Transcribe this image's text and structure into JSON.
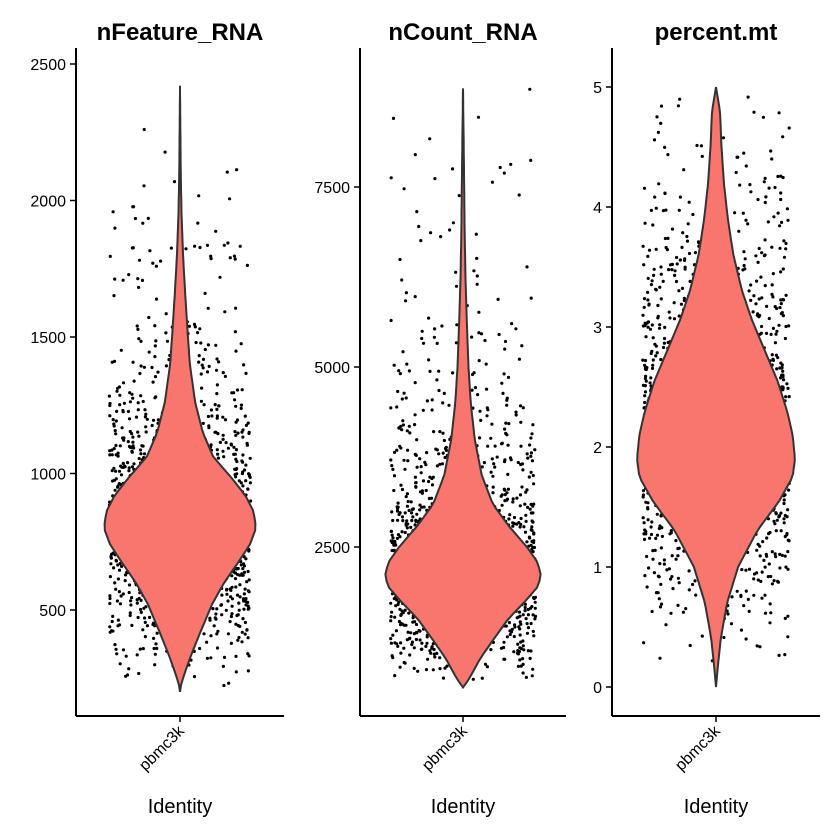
{
  "chart_data": [
    {
      "type": "violin",
      "title": "nFeature_RNA",
      "xlabel": "Identity",
      "ylabel": "",
      "categories": [
        "pbmc3k"
      ],
      "y_ticks": [
        500,
        1000,
        1500,
        2000,
        2500
      ],
      "y_tick_labels": [
        "500",
        "1000",
        "1500",
        "2000",
        "2500"
      ],
      "ylim": [
        200,
        2420
      ],
      "fill_color": "#F8766D",
      "outline_color": "#333333",
      "point_color": "#000000",
      "summary": {
        "min": 212,
        "mode": 820,
        "max": 2410
      },
      "density_profile": [
        [
          212,
          0.0
        ],
        [
          260,
          0.05
        ],
        [
          330,
          0.14
        ],
        [
          420,
          0.27
        ],
        [
          520,
          0.42
        ],
        [
          600,
          0.58
        ],
        [
          680,
          0.78
        ],
        [
          740,
          0.92
        ],
        [
          800,
          1.0
        ],
        [
          860,
          0.97
        ],
        [
          920,
          0.86
        ],
        [
          990,
          0.66
        ],
        [
          1060,
          0.44
        ],
        [
          1150,
          0.3
        ],
        [
          1260,
          0.2
        ],
        [
          1400,
          0.13
        ],
        [
          1520,
          0.1
        ],
        [
          1650,
          0.07
        ],
        [
          1800,
          0.04
        ],
        [
          1950,
          0.02
        ],
        [
          2100,
          0.01
        ],
        [
          2410,
          0.0
        ]
      ]
    },
    {
      "type": "violin",
      "title": "nCount_RNA",
      "xlabel": "Identity",
      "ylabel": "",
      "categories": [
        "pbmc3k"
      ],
      "y_ticks": [
        2500,
        5000,
        7500
      ],
      "y_tick_labels": [
        "2500",
        "5000",
        "7500"
      ],
      "ylim": [
        550,
        8870
      ],
      "fill_color": "#F8766D",
      "outline_color": "#333333",
      "point_color": "#000000",
      "summary": {
        "min": 550,
        "mode": 2100,
        "max": 8870
      },
      "density_profile": [
        [
          550,
          0.0
        ],
        [
          620,
          0.05
        ],
        [
          750,
          0.12
        ],
        [
          950,
          0.22
        ],
        [
          1200,
          0.38
        ],
        [
          1500,
          0.58
        ],
        [
          1750,
          0.8
        ],
        [
          1950,
          0.96
        ],
        [
          2100,
          1.0
        ],
        [
          2280,
          0.96
        ],
        [
          2500,
          0.82
        ],
        [
          2800,
          0.58
        ],
        [
          3100,
          0.38
        ],
        [
          3500,
          0.24
        ],
        [
          4000,
          0.15
        ],
        [
          4500,
          0.1
        ],
        [
          5000,
          0.07
        ],
        [
          5600,
          0.05
        ],
        [
          6300,
          0.03
        ],
        [
          7000,
          0.02
        ],
        [
          8000,
          0.01
        ],
        [
          8870,
          0.0
        ]
      ]
    },
    {
      "type": "violin",
      "title": "percent.mt",
      "xlabel": "Identity",
      "ylabel": "",
      "categories": [
        "pbmc3k"
      ],
      "y_ticks": [
        0,
        1,
        2,
        3,
        4,
        5
      ],
      "y_tick_labels": [
        "0",
        "1",
        "2",
        "3",
        "4",
        "5"
      ],
      "ylim": [
        0,
        5
      ],
      "fill_color": "#F8766D",
      "outline_color": "#333333",
      "point_color": "#000000",
      "summary": {
        "min": 0,
        "mode": 1.9,
        "max": 5
      },
      "density_profile": [
        [
          0.0,
          0.0
        ],
        [
          0.15,
          0.02
        ],
        [
          0.4,
          0.06
        ],
        [
          0.7,
          0.14
        ],
        [
          1.0,
          0.28
        ],
        [
          1.3,
          0.52
        ],
        [
          1.55,
          0.8
        ],
        [
          1.75,
          0.97
        ],
        [
          1.9,
          1.0
        ],
        [
          2.1,
          0.97
        ],
        [
          2.3,
          0.9
        ],
        [
          2.55,
          0.78
        ],
        [
          2.8,
          0.62
        ],
        [
          3.05,
          0.46
        ],
        [
          3.3,
          0.33
        ],
        [
          3.6,
          0.22
        ],
        [
          3.9,
          0.15
        ],
        [
          4.2,
          0.1
        ],
        [
          4.5,
          0.07
        ],
        [
          4.8,
          0.05
        ],
        [
          5.0,
          0.0
        ]
      ]
    }
  ]
}
